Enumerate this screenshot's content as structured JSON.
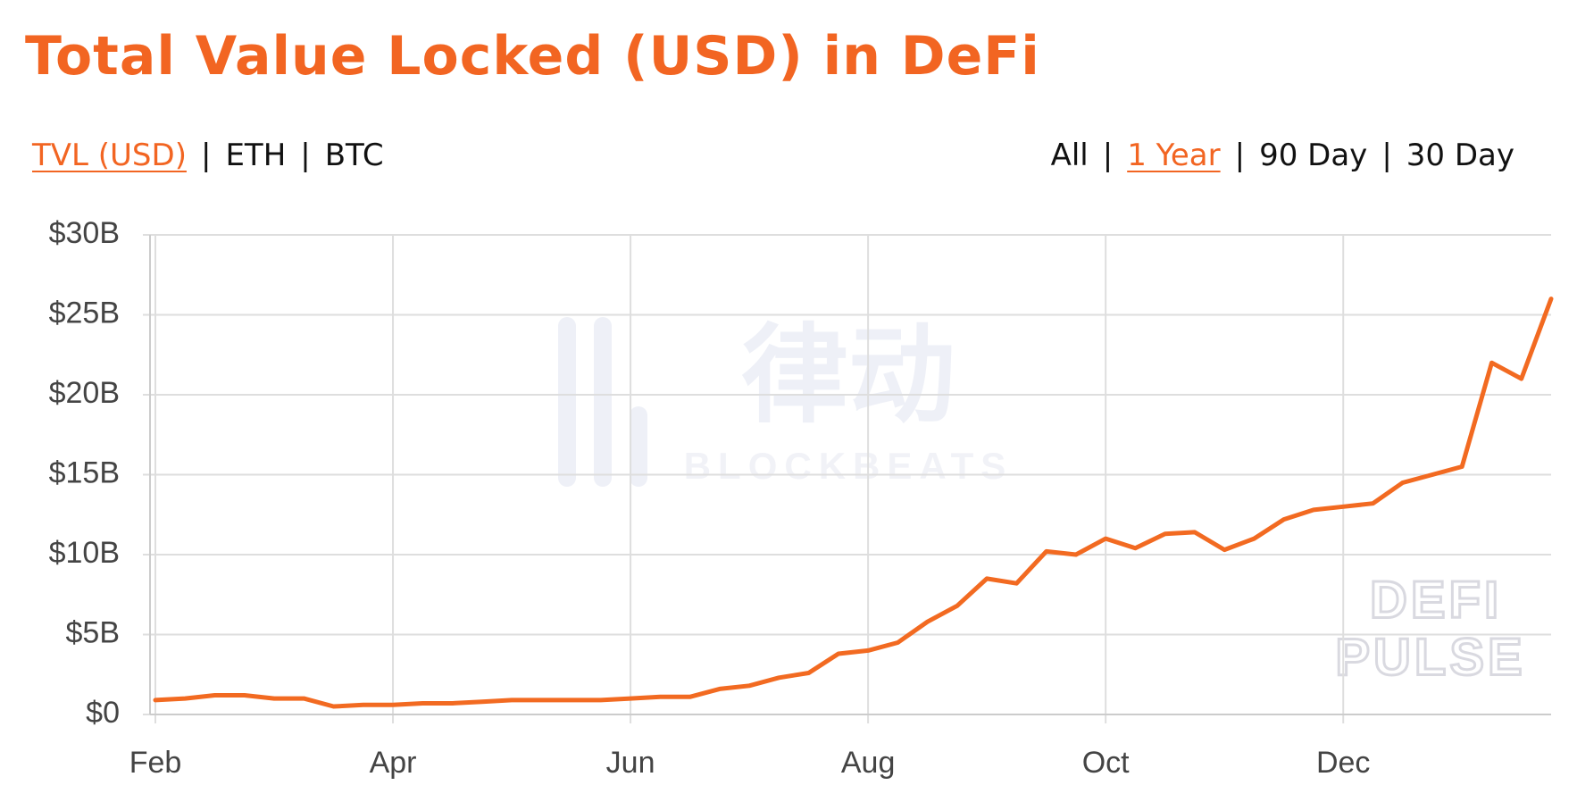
{
  "chart_data": {
    "type": "line",
    "title": "Total Value Locked (USD) in DeFi",
    "nav": {
      "separator": "|",
      "metrics": [
        "TVL (USD)",
        "ETH",
        "BTC"
      ],
      "selected_metric": 0,
      "ranges": [
        "All",
        "1 Year",
        "90 Day",
        "30 Day"
      ],
      "selected_range": 1
    },
    "watermarks": [
      "律动",
      "BLOCKBEATS",
      "DEFI",
      "PULSE"
    ],
    "categories": [
      "Feb",
      null,
      null,
      null,
      null,
      null,
      null,
      null,
      "Apr",
      null,
      null,
      null,
      null,
      null,
      null,
      null,
      "Jun",
      null,
      null,
      null,
      null,
      null,
      null,
      null,
      "Aug",
      null,
      null,
      null,
      null,
      null,
      null,
      null,
      "Oct",
      null,
      null,
      null,
      null,
      null,
      null,
      null,
      "Dec",
      null,
      null,
      null,
      null,
      null,
      null,
      null
    ],
    "series": [
      {
        "name": "TVL (USD)",
        "color": "#f26a21",
        "values": [
          0.9,
          1.0,
          1.2,
          1.2,
          1.0,
          1.0,
          0.5,
          0.6,
          0.6,
          0.7,
          0.7,
          0.8,
          0.9,
          0.9,
          0.9,
          0.9,
          1.0,
          1.1,
          1.1,
          1.6,
          1.8,
          2.3,
          2.6,
          3.8,
          4.0,
          4.5,
          5.8,
          6.8,
          8.5,
          8.2,
          10.2,
          10.0,
          11.0,
          10.4,
          11.3,
          11.4,
          10.3,
          11.0,
          12.2,
          12.8,
          13.0,
          13.2,
          14.5,
          15.0,
          15.5,
          22.0,
          21.0,
          26.0
        ]
      }
    ],
    "ylim": [
      0,
      30
    ],
    "yticks": [
      {
        "value": 0,
        "label": "$0"
      },
      {
        "value": 5,
        "label": "$5B"
      },
      {
        "value": 10,
        "label": "$10B"
      },
      {
        "value": 15,
        "label": "$15B"
      },
      {
        "value": 20,
        "label": "$20B"
      },
      {
        "value": 25,
        "label": "$25B"
      },
      {
        "value": 30,
        "label": "$30B"
      }
    ],
    "grid": true
  }
}
